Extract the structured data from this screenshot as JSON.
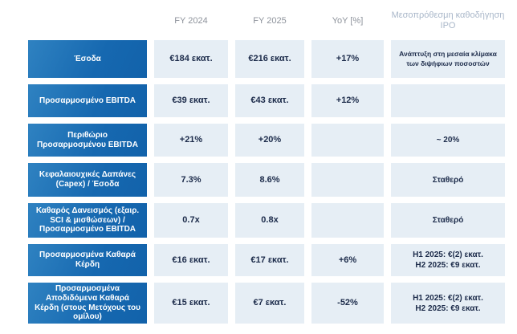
{
  "colors": {
    "label_gradient_start": "#2f82c1",
    "label_gradient_end": "#1262aa",
    "value_cell_background": "#e6eef5",
    "header_text": "#8d929b",
    "guidance_header_text": "#a9b7c9",
    "value_text": "#1c2b4a",
    "label_text": "#ffffff"
  },
  "table": {
    "columns": {
      "fy2024": "FY 2024",
      "fy2025": "FY 2025",
      "yoy": "YoY [%]",
      "guidance": "Μεσοπρόθεσμη καθοδήγηση IPO"
    },
    "rows": [
      {
        "label": "Έσοδα",
        "fy2024": "€184 εκατ.",
        "fy2025": "€216 εκατ.",
        "yoy": "+17%",
        "guidance": "Ανάπτυξη στη μεσαία κλίμακα των διψήφιων ποσοστών"
      },
      {
        "label": "Προσαρμοσμένο EBITDA",
        "fy2024": "€39 εκατ.",
        "fy2025": "€43 εκατ.",
        "yoy": "+12%",
        "guidance": ""
      },
      {
        "label": "Περιθώριο Προσαρμοσμένου EBITDA",
        "fy2024": "+21%",
        "fy2025": "+20%",
        "yoy": "",
        "guidance": "~ 20%"
      },
      {
        "label": "Κεφαλαιουχικές Δαπάνες (Capex) / Έσοδα",
        "fy2024": "7.3%",
        "fy2025": "8.6%",
        "yoy": "",
        "guidance": "Σταθερό"
      },
      {
        "label": "Καθαρός Δανεισμός (εξαιρ. SCI & μισθώσεων) / Προσαρμοσμένο EBITDA",
        "fy2024": "0.7x",
        "fy2025": "0.8x",
        "yoy": "",
        "guidance": "Σταθερό"
      },
      {
        "label": "Προσαρμοσμένα Καθαρά Κέρδη",
        "fy2024": "€16 εκατ.",
        "fy2025": "€17 εκατ.",
        "yoy": "+6%",
        "guidance": [
          "H1 2025: €(2) εκατ.",
          "H2 2025: €9 εκατ."
        ]
      },
      {
        "label": "Προσαρμοσμένα Αποδιδόμενα Καθαρά Κέρδη (στους Μετόχους του ομίλου)",
        "fy2024": "€15 εκατ.",
        "fy2025": "€7 εκατ.",
        "yoy": "-52%",
        "guidance": [
          "H1 2025: €(2) εκατ.",
          "H2 2025: €9 εκατ."
        ]
      }
    ]
  }
}
